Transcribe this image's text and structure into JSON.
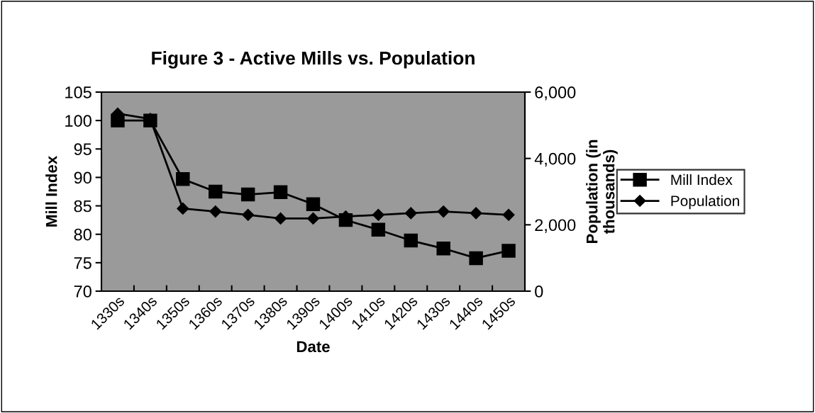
{
  "chart_data": {
    "type": "line",
    "title": "Figure 3 - Active Mills vs. Population",
    "xlabel": "Date",
    "ylabel": "Mill Index",
    "y2label": "Population (in\nthousands)",
    "categories": [
      "1330s",
      "1340s",
      "1350s",
      "1360s",
      "1370s",
      "1380s",
      "1390s",
      "1400s",
      "1410s",
      "1420s",
      "1430s",
      "1440s",
      "1450s"
    ],
    "series": [
      {
        "name": "Mill Index",
        "color": "#000000",
        "marker": "square",
        "values": [
          100,
          100,
          89.7,
          87.5,
          87.0,
          87.4,
          85.3,
          82.5,
          80.8,
          78.9,
          77.5,
          75.8,
          77.1
        ]
      },
      {
        "name": "Population",
        "color": "#000000",
        "marker": "diamond",
        "axis": "y2",
        "values": [
          5350,
          5190,
          2490,
          2400,
          2300,
          2190,
          2190,
          2250,
          2300,
          2350,
          2400,
          2350,
          2300
        ]
      }
    ],
    "ylim": [
      70,
      105
    ],
    "yticks": [
      70,
      75,
      80,
      85,
      90,
      95,
      100,
      105
    ],
    "y2lim": [
      0,
      6000
    ],
    "y2ticks": [
      {
        "value": 0,
        "label": "0"
      },
      {
        "value": 2000,
        "label": "2,000"
      },
      {
        "value": 4000,
        "label": "4,000"
      },
      {
        "value": 6000,
        "label": "6,000"
      }
    ],
    "grid": false,
    "legend": "right"
  }
}
